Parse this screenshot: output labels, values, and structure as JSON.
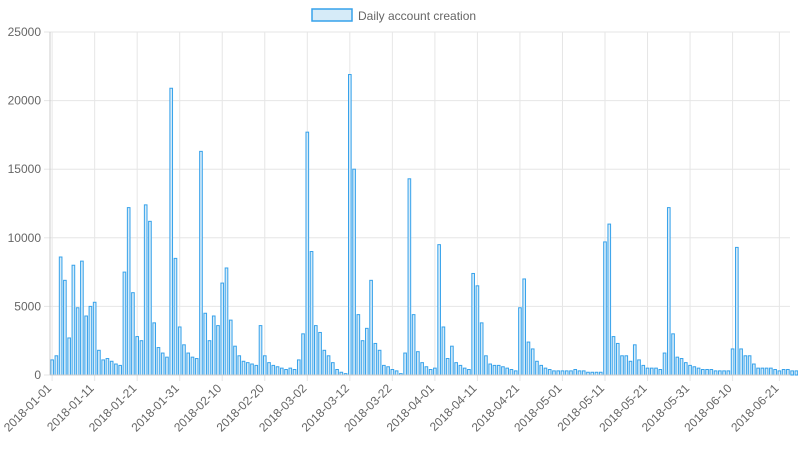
{
  "chart_data": {
    "type": "bar",
    "legend": {
      "label": "Daily account creation",
      "position": "top"
    },
    "colors": {
      "bar_fill": "#d6ebf8",
      "bar_stroke": "#36a2eb",
      "grid": "#e6e6e6",
      "text": "#666666"
    },
    "x_start": "2018-01-01",
    "x_end": "2018-06-23",
    "x_tick_labels": [
      "2018-01-01",
      "2018-01-11",
      "2018-01-21",
      "2018-01-31",
      "2018-02-10",
      "2018-02-20",
      "2018-03-02",
      "2018-03-12",
      "2018-03-22",
      "2018-04-01",
      "2018-04-11",
      "2018-04-21",
      "2018-05-01",
      "2018-05-11",
      "2018-05-21",
      "2018-05-31",
      "2018-06-10",
      "2018-06-21"
    ],
    "y_tick_labels": [
      "0",
      "5000",
      "10000",
      "15000",
      "20000",
      "25000"
    ],
    "ylim": [
      0,
      25000
    ],
    "grid": true,
    "values": [
      1100,
      1400,
      8600,
      6900,
      2700,
      8000,
      4900,
      8300,
      4300,
      5000,
      5300,
      1800,
      1100,
      1200,
      1000,
      800,
      700,
      7500,
      12200,
      6000,
      2800,
      2500,
      12400,
      11200,
      3800,
      2000,
      1600,
      1300,
      20900,
      8500,
      3500,
      2200,
      1600,
      1300,
      1200,
      16300,
      4500,
      2500,
      4300,
      3600,
      6700,
      7800,
      4000,
      2100,
      1400,
      1000,
      900,
      800,
      700,
      3600,
      1400,
      900,
      700,
      600,
      500,
      400,
      500,
      400,
      1100,
      3000,
      17700,
      9000,
      3600,
      3100,
      1800,
      1400,
      900,
      400,
      200,
      100,
      21900,
      15000,
      4400,
      2500,
      3400,
      6900,
      2300,
      1800,
      700,
      600,
      400,
      300,
      100,
      1600,
      14300,
      4400,
      1700,
      900,
      600,
      400,
      500,
      9500,
      3500,
      1200,
      2100,
      900,
      700,
      500,
      400,
      7400,
      6500,
      3800,
      1400,
      800,
      700,
      700,
      600,
      500,
      400,
      300,
      4900,
      7000,
      2400,
      1900,
      1000,
      700,
      500,
      400,
      300,
      300,
      300,
      300,
      300,
      400,
      300,
      300,
      200,
      200,
      200,
      200,
      9700,
      11000,
      2800,
      2300,
      1400,
      1400,
      1000,
      2200,
      1100,
      700,
      500,
      500,
      500,
      400,
      1600,
      12200,
      3000,
      1300,
      1200,
      900,
      700,
      600,
      500,
      400,
      400,
      400,
      300,
      300,
      300,
      300,
      1900,
      9300,
      1900,
      1400,
      1400,
      800,
      500,
      500,
      500,
      500,
      400,
      300,
      400,
      400,
      300,
      300
    ]
  }
}
